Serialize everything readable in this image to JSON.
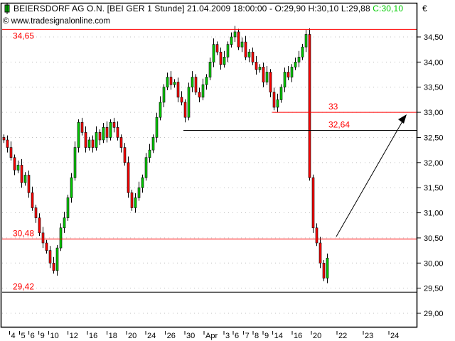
{
  "header": {
    "symbol": "BEIERSDORF AG O.N. [BEI GER  1 Stunde] 21.04.2009 18:00:00 - O:29,90 H:30,10 L:29,88",
    "close": "C:30,10",
    "copyright": "© www.tradesignalonline.com",
    "currency": "€"
  },
  "colors": {
    "up": "#00cc00",
    "down": "#ff0000",
    "level": "#ff0000",
    "support": "#000000",
    "grid": "#c0c0c0"
  },
  "chart_data": {
    "type": "candlestick",
    "title": "BEIERSDORF AG O.N. [BEI GER  1 Stunde] 21.04.2009 18:00:00 - O:29,90 H:30,10 L:29,88 C:30,10",
    "ylabel": "€",
    "ylim": [
      28.75,
      34.9
    ],
    "grid": true,
    "y_ticks": [
      "34,50",
      "34,00",
      "33,50",
      "33,00",
      "32,50",
      "32,00",
      "31,50",
      "31,00",
      "30,50",
      "30,00",
      "29,50",
      "29,00"
    ],
    "y_tick_values": [
      34.5,
      34.0,
      33.5,
      33.0,
      32.5,
      32.0,
      31.5,
      31.0,
      30.5,
      30.0,
      29.5,
      29.0
    ],
    "x_ticks": [
      "4",
      "5",
      "6",
      "9",
      "10",
      "12",
      "16",
      "18",
      "20",
      "24",
      "26",
      "30",
      "Apr",
      "3",
      "6",
      "7",
      "8",
      "9",
      "14",
      "16",
      "20",
      "22",
      "23",
      "24"
    ],
    "closes": [
      32.45,
      32.3,
      32.1,
      31.85,
      31.95,
      31.6,
      31.75,
      31.4,
      31.1,
      30.9,
      30.6,
      30.4,
      30.25,
      30.0,
      29.85,
      30.3,
      30.7,
      30.9,
      31.3,
      31.7,
      32.3,
      32.8,
      32.6,
      32.3,
      32.45,
      32.3,
      32.6,
      32.45,
      32.7,
      32.5,
      32.8,
      32.7,
      32.5,
      32.3,
      32.0,
      31.4,
      31.1,
      31.3,
      31.5,
      31.7,
      32.1,
      32.25,
      32.5,
      32.9,
      33.2,
      33.5,
      33.7,
      33.55,
      33.6,
      33.3,
      33.2,
      32.9,
      33.5,
      33.7,
      33.4,
      33.3,
      33.55,
      33.7,
      34.0,
      34.35,
      34.2,
      33.95,
      34.1,
      34.35,
      34.5,
      34.6,
      34.3,
      34.4,
      34.1,
      34.2,
      34.0,
      33.85,
      33.9,
      33.6,
      33.8,
      33.4,
      33.1,
      33.25,
      33.5,
      33.8,
      33.7,
      33.9,
      34.0,
      34.1,
      34.3,
      34.55,
      31.7,
      30.7,
      30.4,
      30.0,
      29.7,
      30.1
    ],
    "levels": [
      {
        "value": 34.65,
        "label": "34,65",
        "color": "#ff0000"
      },
      {
        "value": 33.0,
        "label": "33",
        "color": "#ff0000"
      },
      {
        "value": 32.64,
        "label": "32,64",
        "color": "#000000"
      },
      {
        "value": 30.48,
        "label": "30,48",
        "color": "#ff0000"
      },
      {
        "value": 29.42,
        "label": "29,42",
        "color": "#000000"
      }
    ],
    "arrow": {
      "from": 30.5,
      "to": 33.0
    }
  }
}
